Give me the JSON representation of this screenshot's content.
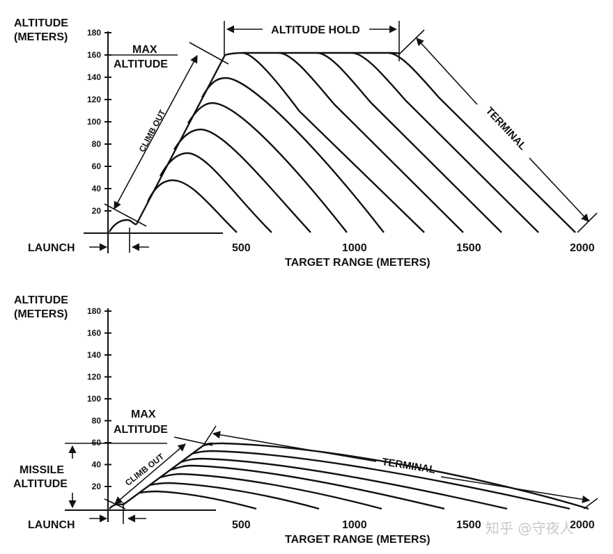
{
  "top": {
    "ylabel_line1": "ALTITUDE",
    "ylabel_line2": "(METERS)",
    "y_ticks": [
      "180",
      "160",
      "140",
      "120",
      "100",
      "80",
      "60",
      "40",
      "20"
    ],
    "x_ticks": [
      "500",
      "1000",
      "1500",
      "2000"
    ],
    "xlabel": "TARGET RANGE (METERS)",
    "launch": "LAUNCH",
    "max_altitude_line1": "MAX",
    "max_altitude_line2": "ALTITUDE",
    "climb_out": "CLIMB OUT",
    "altitude_hold": "ALTITUDE HOLD",
    "terminal": "TERMINAL"
  },
  "bottom": {
    "ylabel_line1": "ALTITUDE",
    "ylabel_line2": "(METERS)",
    "y_ticks": [
      "180",
      "160",
      "140",
      "120",
      "100",
      "80",
      "60",
      "40",
      "20"
    ],
    "x_ticks": [
      "500",
      "1000",
      "1500",
      "2000"
    ],
    "xlabel": "TARGET RANGE (METERS)",
    "launch": "LAUNCH",
    "max_altitude_line1": "MAX",
    "max_altitude_line2": "ALTITUDE",
    "missile_altitude_line1": "MISSILE",
    "missile_altitude_line2": "ALTITUDE",
    "climb_out": "CLIMB OUT",
    "terminal": "TERMINAL"
  },
  "watermark": "知乎 @守夜人"
}
